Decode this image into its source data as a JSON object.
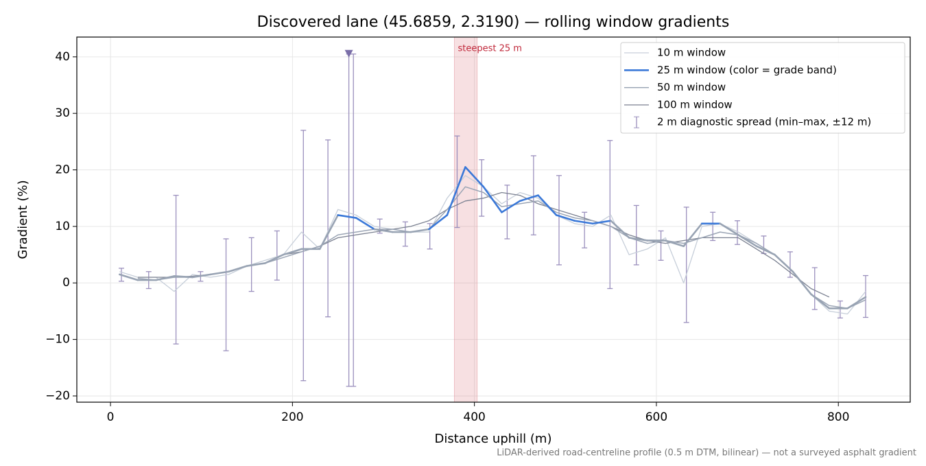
{
  "chart_data": {
    "type": "line",
    "title": "Discovered lane (45.6859, 2.3190) — rolling window gradients",
    "xlabel": "Distance uphill (m)",
    "ylabel": "Gradient (%)",
    "footnote": "LiDAR-derived road-centreline profile (0.5 m DTM, bilinear) — not a surveyed asphalt gradient",
    "x": [
      10,
      30,
      50,
      70,
      90,
      110,
      130,
      150,
      170,
      190,
      210,
      230,
      250,
      270,
      290,
      310,
      330,
      350,
      370,
      390,
      410,
      430,
      450,
      470,
      490,
      510,
      530,
      550,
      570,
      590,
      610,
      630,
      650,
      670,
      690,
      710,
      730,
      750,
      770,
      790,
      810,
      830
    ],
    "series": [
      {
        "name": "10 m window",
        "color": "#c6ced9",
        "width": 1.3,
        "values": [
          2,
          1,
          1,
          -1.5,
          1.5,
          1,
          1.5,
          3,
          4,
          5,
          9,
          6,
          13,
          12,
          10,
          9.5,
          9,
          9,
          15,
          19,
          17,
          14,
          16,
          15,
          12,
          10.5,
          10,
          12,
          5,
          6,
          8,
          0,
          10,
          10.5,
          9,
          7,
          5,
          2,
          -2,
          -5,
          -5.5,
          -1.5
        ]
      },
      {
        "name": "25 m window (color = grade band)",
        "color": "#3a78d8",
        "width": 2.6,
        "band_base_color": "#98a3b3",
        "grade_bands": [
          {
            "from": 10,
            "color": "#3a78d8"
          },
          {
            "from": 20,
            "color": "#e08a00"
          }
        ],
        "values": [
          1.5,
          0.5,
          0.5,
          1.2,
          1,
          1.5,
          2,
          3,
          3.5,
          5,
          6,
          6,
          12,
          11.5,
          9.5,
          9,
          9,
          9.5,
          12,
          20.5,
          17,
          12.5,
          14.5,
          15.5,
          12,
          11,
          10.5,
          11,
          8,
          7.5,
          7.5,
          6.5,
          10.5,
          10.5,
          8.5,
          6.5,
          5,
          2,
          -2,
          -4.5,
          -4.5,
          -2.5
        ]
      },
      {
        "name": "50 m window",
        "color": "#9aa4b4",
        "width": 1.5,
        "values": [
          null,
          0.8,
          0.5,
          1,
          1,
          1.5,
          2,
          3,
          3.5,
          4.5,
          5.5,
          6.5,
          8.5,
          9,
          9.5,
          9.5,
          9,
          9.5,
          13,
          17,
          16,
          13.5,
          14,
          14.5,
          12.5,
          11.5,
          11,
          10,
          8,
          7,
          7.5,
          7,
          8,
          9,
          8.5,
          7,
          5,
          2,
          -2,
          -4,
          -4.5,
          -3
        ]
      },
      {
        "name": "100 m window",
        "color": "#7b8191",
        "width": 1.3,
        "values": [
          null,
          1,
          1,
          1,
          1.2,
          1.5,
          2,
          3,
          3.5,
          5,
          5.5,
          6.5,
          8,
          8.5,
          9,
          9.5,
          10,
          11,
          13,
          14.5,
          15,
          16,
          15.5,
          14,
          13,
          12,
          11,
          10,
          8.5,
          7.5,
          7,
          7.5,
          8,
          8,
          8,
          6,
          4,
          1.5,
          -1,
          -2.5,
          null,
          null
        ]
      }
    ],
    "errorbars": {
      "name": "2 m diagnostic spread (min–max, ±12 m)",
      "color": "#9a8fbd",
      "x": [
        12,
        42,
        72,
        99,
        127,
        155,
        183,
        212,
        239,
        262,
        267,
        296,
        324,
        351,
        381,
        408,
        436,
        465,
        493,
        521,
        549,
        578,
        605,
        633,
        662,
        689,
        718,
        747,
        774,
        802,
        830
      ],
      "low": [
        0.3,
        -1,
        -10.8,
        0.3,
        -12,
        -1.5,
        0.5,
        -17.3,
        -6,
        -18.3,
        -18.3,
        8.8,
        6.5,
        6,
        9.8,
        11.8,
        7.8,
        8.5,
        3.2,
        6.2,
        -1,
        3.2,
        4,
        -7,
        7.5,
        6.8,
        5.2,
        1,
        -4.7,
        -6.2,
        -6.1
      ],
      "high": [
        2.6,
        2,
        15.5,
        2,
        7.8,
        8,
        9.2,
        27,
        25.3,
        40.5,
        40.5,
        11.3,
        10.8,
        10.5,
        26,
        21.8,
        17.3,
        22.5,
        19,
        12.5,
        25.2,
        13.7,
        9.2,
        13.4,
        12.5,
        11,
        8.3,
        5.5,
        2.7,
        -3.2,
        1.3
      ],
      "clipped": [
        false,
        false,
        false,
        false,
        false,
        false,
        false,
        false,
        false,
        true,
        false,
        false,
        false,
        false,
        false,
        false,
        false,
        false,
        false,
        false,
        false,
        false,
        false,
        false,
        false,
        false,
        false,
        false,
        false,
        false,
        false
      ]
    },
    "highlight": {
      "label": "steepest 25 m",
      "span": [
        378,
        403
      ],
      "color": "#d9737d"
    },
    "xlim": [
      -37,
      879
    ],
    "ylim": [
      -21.1,
      43.5
    ],
    "xticks": [
      0,
      200,
      400,
      600,
      800
    ],
    "yticks": [
      {
        "value": -20,
        "label": "−20"
      },
      {
        "value": -10,
        "label": "−10"
      },
      0,
      10,
      20,
      30,
      40
    ],
    "grid": true,
    "legend": "upper right"
  }
}
